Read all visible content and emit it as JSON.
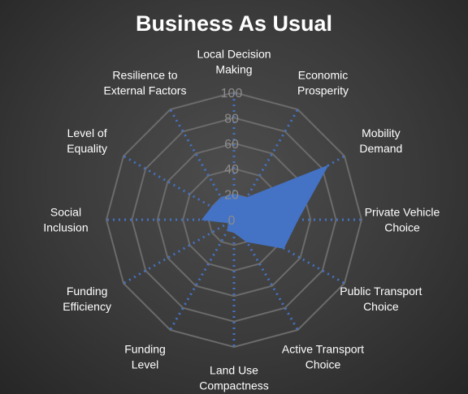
{
  "chart_data": {
    "type": "radar",
    "title": "Business As Usual",
    "axes": [
      [
        "Local Decision",
        "Making"
      ],
      [
        "Economic",
        "Prosperity"
      ],
      [
        "Mobility",
        "Demand"
      ],
      [
        "Private Vehicle",
        "Choice"
      ],
      [
        "Public Transport",
        "Choice"
      ],
      [
        "Active Transport",
        "Choice"
      ],
      [
        "Land Use",
        "Compactness"
      ],
      [
        "Funding",
        "Level"
      ],
      [
        "Funding",
        "Efficiency"
      ],
      [
        "Social",
        "Inclusion"
      ],
      [
        "Level of",
        "Equality"
      ],
      [
        "Resilience to",
        "External Factors"
      ]
    ],
    "series": [
      {
        "values": [
          20,
          20,
          85,
          50,
          45,
          20,
          10,
          10,
          5,
          25,
          20,
          20
        ]
      }
    ],
    "rlim": [
      0,
      100
    ],
    "ticks": [
      "0",
      "20",
      "40",
      "60",
      "80",
      "100"
    ],
    "colors": {
      "series_fill": "#4472C4",
      "spoke": "#4472C4",
      "grid": "#6b6b6b",
      "tick_label": "#8c8c8c",
      "axis_label": "#ffffff"
    }
  }
}
